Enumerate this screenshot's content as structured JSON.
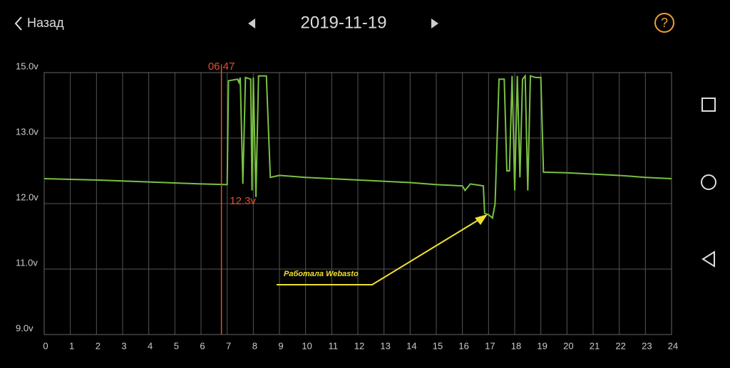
{
  "header": {
    "back": "Назад",
    "date": "2019-11-19"
  },
  "chart_data": {
    "type": "line",
    "x": [
      0,
      2,
      4,
      6,
      7.0,
      7.05,
      7.4,
      7.45,
      7.5,
      7.6,
      7.7,
      7.9,
      7.95,
      8.0,
      8.1,
      8.2,
      8.5,
      8.65,
      9,
      10,
      12,
      14,
      15,
      16,
      16.1,
      16.3,
      16.8,
      16.85,
      17,
      17.15,
      17.25,
      17.4,
      17.6,
      17.7,
      17.8,
      17.9,
      18.0,
      18.1,
      18.2,
      18.3,
      18.4,
      18.5,
      18.6,
      18.8,
      19.0,
      19.1,
      20,
      22,
      23,
      24
    ],
    "series": [
      {
        "color": "#7ac142",
        "values": [
          12.38,
          12.36,
          12.33,
          12.3,
          12.29,
          14.75,
          14.8,
          14.7,
          14.85,
          12.3,
          14.85,
          14.8,
          12.2,
          14.85,
          12.1,
          14.9,
          14.9,
          12.4,
          12.43,
          12.4,
          12.36,
          12.32,
          12.29,
          12.27,
          12.2,
          12.3,
          12.27,
          11.85,
          11.83,
          11.78,
          12.0,
          14.8,
          14.8,
          12.5,
          12.5,
          14.9,
          12.2,
          14.9,
          12.4,
          14.8,
          14.9,
          12.2,
          14.9,
          14.85,
          14.85,
          12.48,
          12.47,
          12.43,
          12.4,
          12.38
        ]
      }
    ],
    "xlim": [
      0,
      24
    ],
    "xticks": [
      0,
      1,
      2,
      3,
      4,
      5,
      6,
      7,
      8,
      9,
      10,
      11,
      12,
      13,
      14,
      15,
      16,
      17,
      18,
      19,
      20,
      21,
      22,
      23,
      24
    ],
    "ylim": [
      9,
      15
    ],
    "yticks": [
      {
        "value": 9,
        "label": "9.0v"
      },
      {
        "value": 11,
        "label": "11.0v"
      },
      {
        "value": 12,
        "label": "12.0v"
      },
      {
        "value": 13,
        "label": "13.0v"
      },
      {
        "value": 15,
        "label": "15.0v"
      }
    ],
    "grid": true,
    "cursor": {
      "x": 6.78,
      "time_label": "06:47",
      "value_label": "12.3v"
    },
    "annotation": "Работала Webasto"
  }
}
